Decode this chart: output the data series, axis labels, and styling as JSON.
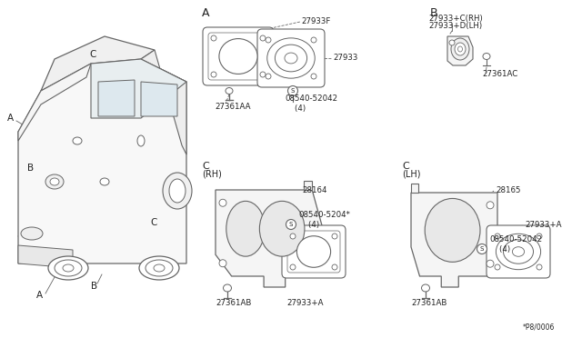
{
  "bg_color": "#ffffff",
  "line_color": "#666666",
  "text_color": "#222222",
  "fig_width": 6.4,
  "fig_height": 3.72,
  "dpi": 100,
  "labels": {
    "A_label": "A",
    "B_label": "B",
    "C_RH_label": "C\n(RH)",
    "C_LH_label": "C\n(LH)",
    "ref_A": "A",
    "ref_B": "B",
    "ref_C": "C",
    "part_27933F": "27933F",
    "part_27933": "27933",
    "part_27361AA": "27361AA",
    "part_08540_52042_A": "08540-52042\n    (4)",
    "part_27933C_RH": "27933+C(RH)",
    "part_27933D_LH": "27933+D(LH)",
    "part_27361AC": "27361AC",
    "part_28164": "28164",
    "part_08540_5204_RH": "08540-5204*\n    (4)",
    "part_27361AB_RH": "27361AB",
    "part_27933A_RH": "27933+A",
    "part_28165": "28165",
    "part_27933A_LH": "27933+A",
    "part_08540_52042_LH": "08540-52042\n    (4)",
    "part_27361AB_LH": "27361AB",
    "part_ref": "*P8/0006"
  }
}
